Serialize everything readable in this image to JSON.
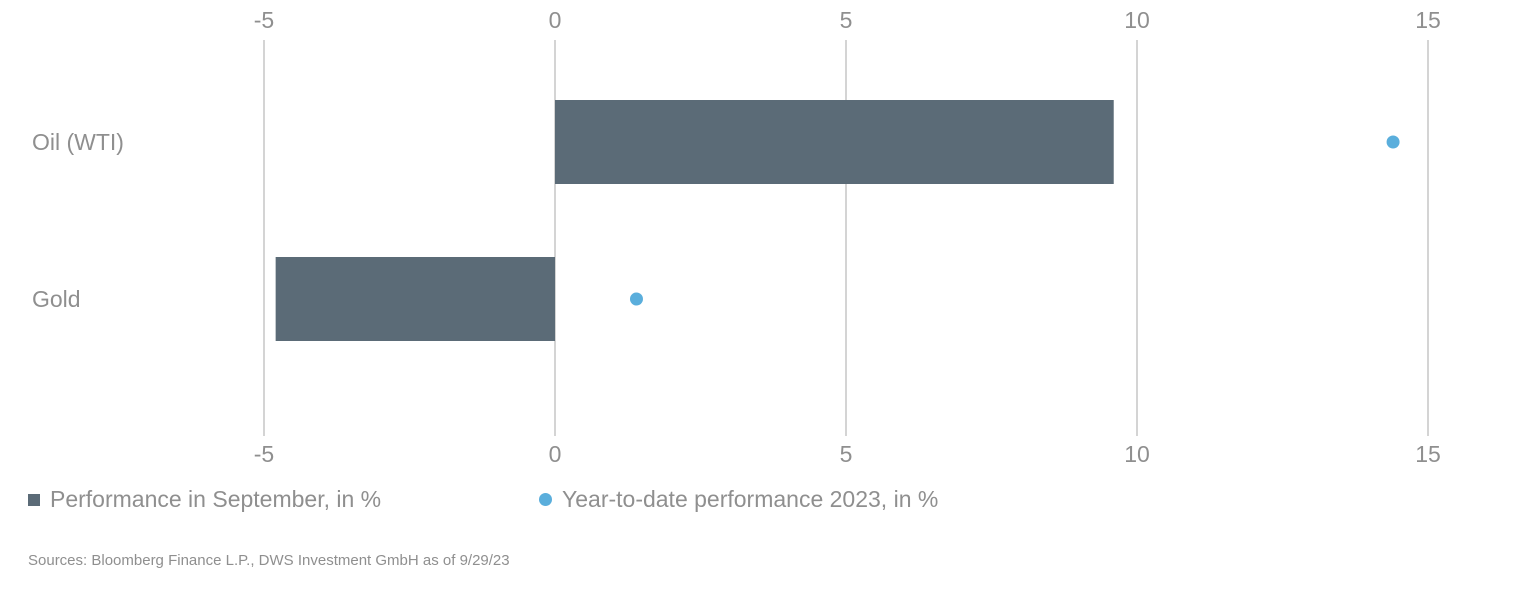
{
  "chart_data": {
    "type": "bar",
    "orientation": "horizontal",
    "categories": [
      "Oil (WTI)",
      "Gold"
    ],
    "series": [
      {
        "name": "Performance in September, in %",
        "mark": "bar",
        "color": "#5b6b77",
        "values": [
          9.6,
          -4.8
        ]
      },
      {
        "name": "Year-to-date performance 2023, in %",
        "mark": "dot",
        "color": "#5aaedc",
        "values": [
          14.4,
          1.4
        ]
      }
    ],
    "xlim": [
      -5,
      15
    ],
    "xticks": [
      -5,
      0,
      5,
      10,
      15
    ],
    "tick_labels": [
      "-5",
      "0",
      "5",
      "10",
      "15"
    ],
    "axis_labels_top_and_bottom": true,
    "grid": true,
    "legend_position": "bottom-left"
  },
  "legend": {
    "items": [
      {
        "label": "Performance in September, in %",
        "color": "#5b6b77",
        "shape": "square"
      },
      {
        "label": "Year-to-date performance 2023, in %",
        "color": "#5aaedc",
        "shape": "dot"
      }
    ]
  },
  "source": "Sources: Bloomberg Finance L.P., DWS Investment GmbH as of 9/29/23"
}
